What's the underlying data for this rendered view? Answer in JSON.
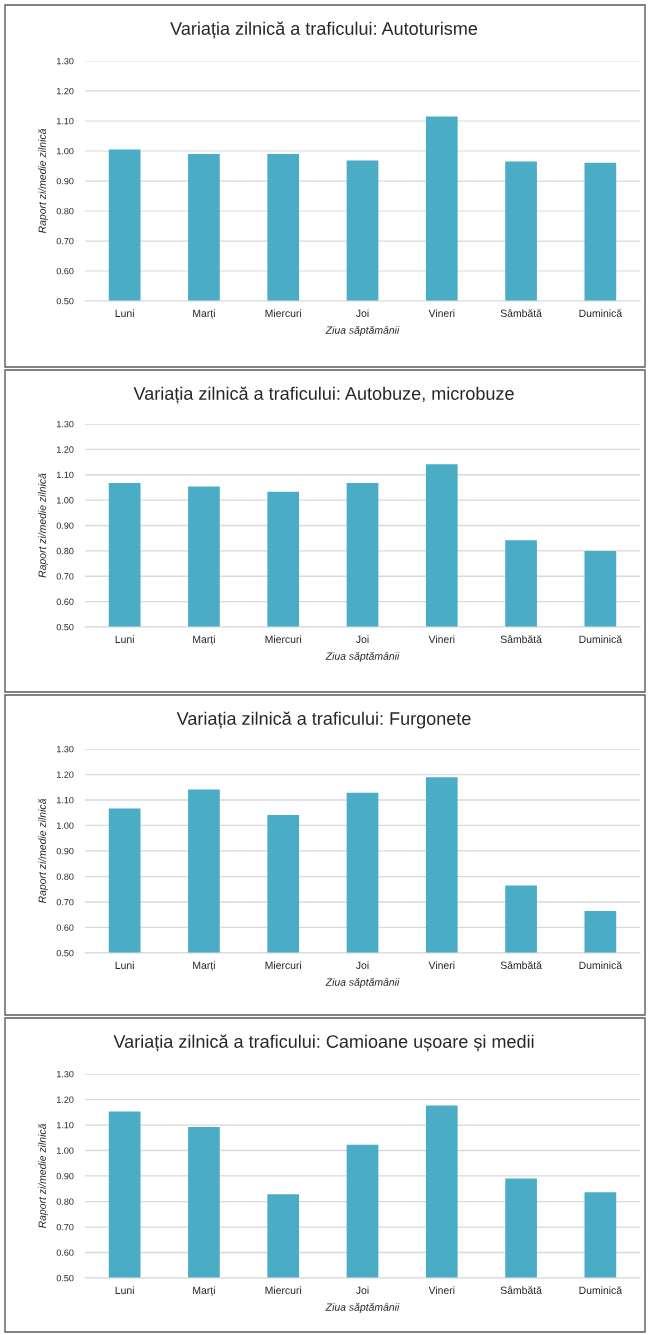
{
  "chart_data": [
    {
      "type": "bar",
      "title": "Variația zilnică a traficului: Autoturisme",
      "xlabel": "Ziua săptămânii",
      "ylabel": "Raport zi/medie zilnică",
      "categories": [
        "Luni",
        "Marți",
        "Miercuri",
        "Joi",
        "Vineri",
        "Sâmbătă",
        "Duminică"
      ],
      "values": [
        1.005,
        0.99,
        0.99,
        0.968,
        1.115,
        0.965,
        0.961
      ],
      "color": "#4bacc6",
      "ylim": [
        0.5,
        1.3
      ],
      "yticks": [
        {
          "value": 0.5,
          "label": "0.50"
        },
        {
          "value": 0.6,
          "label": "0.60"
        },
        {
          "value": 0.7,
          "label": "0.70"
        },
        {
          "value": 0.8,
          "label": "0.80"
        },
        {
          "value": 0.9,
          "label": "0.90"
        },
        {
          "value": 1.0,
          "label": "1.00"
        },
        {
          "value": 1.1,
          "label": "1.10"
        },
        {
          "value": 1.2,
          "label": "1.20"
        },
        {
          "value": 1.3,
          "label": "1.30"
        }
      ],
      "grid": "y"
    },
    {
      "type": "bar",
      "title": "Variația zilnică a traficului: Autobuze, microbuze",
      "xlabel": "Ziua săptămânii",
      "ylabel": "Raport zi/medie zilnică",
      "categories": [
        "Luni",
        "Marți",
        "Miercuri",
        "Joi",
        "Vineri",
        "Sâmbătă",
        "Duminică"
      ],
      "values": [
        1.067,
        1.054,
        1.033,
        1.067,
        1.141,
        0.842,
        0.8
      ],
      "color": "#4bacc6",
      "ylim": [
        0.5,
        1.3
      ],
      "yticks": [
        {
          "value": 0.5,
          "label": "0.50"
        },
        {
          "value": 0.6,
          "label": "0.60"
        },
        {
          "value": 0.7,
          "label": "0.70"
        },
        {
          "value": 0.8,
          "label": "0.80"
        },
        {
          "value": 0.9,
          "label": "0.90"
        },
        {
          "value": 1.0,
          "label": "1.00"
        },
        {
          "value": 1.1,
          "label": "1.10"
        },
        {
          "value": 1.2,
          "label": "1.20"
        },
        {
          "value": 1.3,
          "label": "1.30"
        }
      ],
      "grid": "y"
    },
    {
      "type": "bar",
      "title": "Variația zilnică a traficului: Furgonete",
      "xlabel": "Ziua săptămânii",
      "ylabel": "Raport zi/medie zilnică",
      "categories": [
        "Luni",
        "Marți",
        "Miercuri",
        "Joi",
        "Vineri",
        "Sâmbătă",
        "Duminică"
      ],
      "values": [
        1.067,
        1.141,
        1.041,
        1.128,
        1.189,
        0.765,
        0.665
      ],
      "color": "#4bacc6",
      "ylim": [
        0.5,
        1.3
      ],
      "yticks": [
        {
          "value": 0.5,
          "label": "0.50"
        },
        {
          "value": 0.6,
          "label": "0.60"
        },
        {
          "value": 0.7,
          "label": "0.70"
        },
        {
          "value": 0.8,
          "label": "0.80"
        },
        {
          "value": 0.9,
          "label": "0.90"
        },
        {
          "value": 1.0,
          "label": "1.00"
        },
        {
          "value": 1.1,
          "label": "1.10"
        },
        {
          "value": 1.2,
          "label": "1.20"
        },
        {
          "value": 1.3,
          "label": "1.30"
        }
      ],
      "grid": "y"
    },
    {
      "type": "bar",
      "title": "Variația zilnică a traficului: Camioane ușoare și medii",
      "xlabel": "Ziua săptămânii",
      "ylabel": "Raport zi/medie zilnică",
      "categories": [
        "Luni",
        "Marți",
        "Miercuri",
        "Joi",
        "Vineri",
        "Sâmbătă",
        "Duminică"
      ],
      "values": [
        1.153,
        1.092,
        0.828,
        1.023,
        1.176,
        0.89,
        0.836
      ],
      "color": "#4bacc6",
      "ylim": [
        0.5,
        1.3
      ],
      "yticks": [
        {
          "value": 0.5,
          "label": "0.50"
        },
        {
          "value": 0.6,
          "label": "0.60"
        },
        {
          "value": 0.7,
          "label": "0.70"
        },
        {
          "value": 0.8,
          "label": "0.80"
        },
        {
          "value": 0.9,
          "label": "0.90"
        },
        {
          "value": 1.0,
          "label": "1.00"
        },
        {
          "value": 1.1,
          "label": "1.10"
        },
        {
          "value": 1.2,
          "label": "1.20"
        },
        {
          "value": 1.3,
          "label": "1.30"
        }
      ],
      "grid": "y"
    }
  ]
}
